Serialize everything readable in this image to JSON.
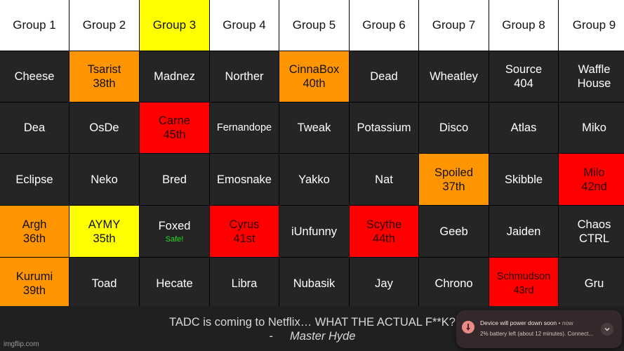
{
  "headers": [
    "Group 1",
    "Group 2",
    "Group 3",
    "Group 4",
    "Group 5",
    "Group 6",
    "Group 7",
    "Group 8",
    "Group 9"
  ],
  "header_colors": [
    "white",
    "white",
    "yellow",
    "white",
    "white",
    "white",
    "white",
    "white",
    "white"
  ],
  "rows": [
    [
      {
        "name": "Cheese",
        "color": "dark"
      },
      {
        "name": "Tsarist",
        "place": "38th",
        "color": "orange"
      },
      {
        "name": "Madnez",
        "color": "dark"
      },
      {
        "name": "Norther",
        "color": "dark"
      },
      {
        "name": "CinnaBox",
        "place": "40th",
        "color": "orange"
      },
      {
        "name": "Dead",
        "color": "dark"
      },
      {
        "name": "Wheatley",
        "color": "dark"
      },
      {
        "name": "Source",
        "place": "404",
        "color": "dark"
      },
      {
        "name": "Waffle",
        "place": "House",
        "color": "dark"
      }
    ],
    [
      {
        "name": "Dea",
        "color": "dark"
      },
      {
        "name": "OsDe",
        "color": "dark"
      },
      {
        "name": "Carne",
        "place": "45th",
        "color": "red"
      },
      {
        "name": "Fernandope",
        "color": "dark",
        "small": true
      },
      {
        "name": "Tweak",
        "color": "dark"
      },
      {
        "name": "Potassium",
        "color": "dark"
      },
      {
        "name": "Disco",
        "color": "dark"
      },
      {
        "name": "Atlas",
        "color": "dark"
      },
      {
        "name": "Miko",
        "color": "dark"
      }
    ],
    [
      {
        "name": "Eclipse",
        "color": "dark"
      },
      {
        "name": "Neko",
        "color": "dark"
      },
      {
        "name": "Bred",
        "color": "dark"
      },
      {
        "name": "Emosnake",
        "color": "dark"
      },
      {
        "name": "Yakko",
        "color": "dark"
      },
      {
        "name": "Nat",
        "color": "dark"
      },
      {
        "name": "Spoiled",
        "place": "37th",
        "color": "orange"
      },
      {
        "name": "Skibble",
        "color": "dark"
      },
      {
        "name": "Milo",
        "place": "42nd",
        "color": "red"
      }
    ],
    [
      {
        "name": "Argh",
        "place": "36th",
        "color": "orange"
      },
      {
        "name": "AYMY",
        "place": "35th",
        "color": "yellow"
      },
      {
        "name": "Foxed",
        "note": "Safe!",
        "color": "dark"
      },
      {
        "name": "Cyrus",
        "place": "41st",
        "color": "red"
      },
      {
        "name": "iUnfunny",
        "color": "dark"
      },
      {
        "name": "Scythe",
        "place": "44th",
        "color": "red"
      },
      {
        "name": "Geeb",
        "color": "dark"
      },
      {
        "name": "Jaiden",
        "color": "dark"
      },
      {
        "name": "Chaos",
        "place": "CTRL",
        "color": "dark"
      }
    ],
    [
      {
        "name": "Kurumi",
        "place": "39th",
        "color": "orange"
      },
      {
        "name": "Toad",
        "color": "dark"
      },
      {
        "name": "Hecate",
        "color": "dark"
      },
      {
        "name": "Libra",
        "color": "dark"
      },
      {
        "name": "Nubasik",
        "color": "dark"
      },
      {
        "name": "Jay",
        "color": "dark"
      },
      {
        "name": "Chrono",
        "color": "dark"
      },
      {
        "name": "Schmudson",
        "place": "43rd",
        "color": "red",
        "small": true
      },
      {
        "name": "Gru",
        "color": "dark"
      }
    ]
  ],
  "footer": {
    "quote": "TADC is coming to Netflix… WHAT THE ACTUAL F**K?",
    "dash": "-",
    "author": "Master Hyde",
    "watermark": "imgflip.com"
  },
  "notification": {
    "icon": "battery-alert-icon",
    "title": "Device will power down soon",
    "separator": "•",
    "time": "now",
    "body": "2% battery left (about 12 minutes). Connect...",
    "expand_icon": "chevron-down-icon"
  }
}
